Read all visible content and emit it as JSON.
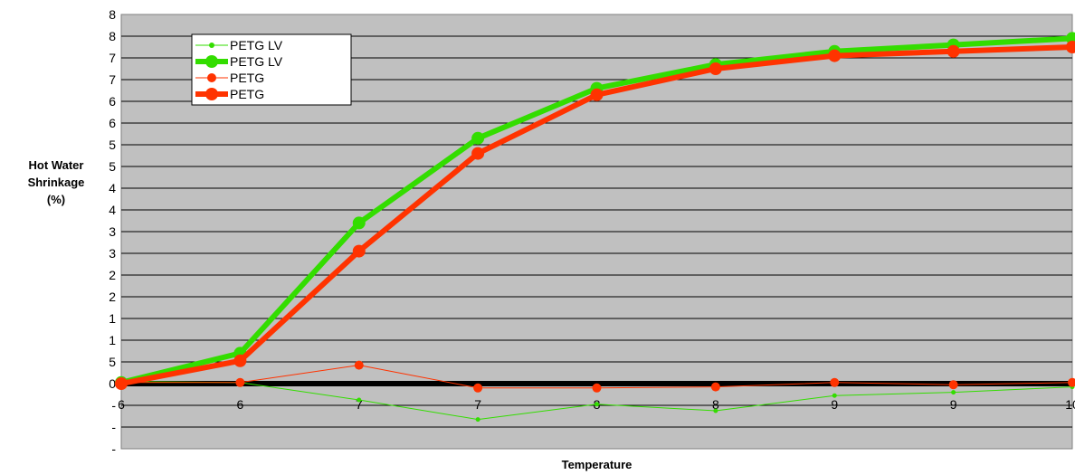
{
  "chart_data": {
    "type": "line",
    "xlabel": "Temperature",
    "ylabel": [
      "Hot Water",
      "Shrinkage",
      "(%)"
    ],
    "x_tick_labels": [
      "6",
      "6",
      "7",
      "7",
      "8",
      "8",
      "9",
      "9",
      "10"
    ],
    "y_tick_labels": [
      "-",
      "-",
      "-",
      "0",
      "5",
      "1",
      "1",
      "2",
      "2",
      "3",
      "3",
      "4",
      "4",
      "5",
      "5",
      "6",
      "6",
      "7",
      "7",
      "8",
      "8"
    ],
    "ylim": [
      -3,
      17
    ],
    "grid": true,
    "legend_position": "top-left",
    "series": [
      {
        "name": "PETG LV",
        "color": "#33dd00",
        "width": 1,
        "marker": 5,
        "values": [
          0.1,
          0.05,
          -0.75,
          -1.65,
          -0.95,
          -1.25,
          -0.55,
          -0.4,
          -0.15
        ]
      },
      {
        "name": "PETG LV",
        "color": "#33dd00",
        "width": 6,
        "marker": 14,
        "values": [
          0.05,
          1.4,
          7.4,
          11.3,
          13.6,
          14.7,
          15.3,
          15.6,
          15.9
        ]
      },
      {
        "name": "PETG",
        "color": "#ff3300",
        "width": 1,
        "marker": 10,
        "values": [
          0.05,
          0.05,
          0.85,
          -0.2,
          -0.2,
          -0.15,
          0.05,
          -0.05,
          0.05
        ]
      },
      {
        "name": "PETG",
        "color": "#ff3300",
        "width": 6,
        "marker": 14,
        "values": [
          0.0,
          1.05,
          6.1,
          10.6,
          13.3,
          14.5,
          15.1,
          15.3,
          15.5
        ]
      }
    ]
  }
}
